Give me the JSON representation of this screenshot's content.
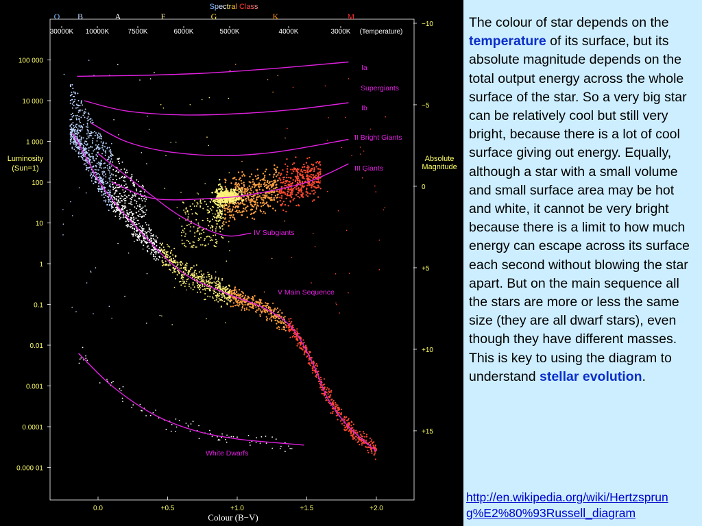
{
  "chart_data": {
    "type": "scatter",
    "title": "Spectral Class",
    "spectral_classes": [
      {
        "label": "O",
        "color": "#7fb8ff"
      },
      {
        "label": "B",
        "color": "#c8dcff"
      },
      {
        "label": "A",
        "color": "#ffffff"
      },
      {
        "label": "F",
        "color": "#fff6a0"
      },
      {
        "label": "G",
        "color": "#ffe040"
      },
      {
        "label": "K",
        "color": "#ff9020"
      },
      {
        "label": "M",
        "color": "#ff2a2a"
      }
    ],
    "temperature_ticks": [
      "30000K",
      "10000K",
      "7500K",
      "6000K",
      "5000K",
      "4000K",
      "3000K"
    ],
    "temperature_label": "(Temperature)",
    "xlabel": "Colour (B−V)",
    "x_ticks": [
      "0.0",
      "+0.5",
      "+1.0",
      "+1.5",
      "+2.0"
    ],
    "x_tick_values": [
      0.0,
      0.5,
      1.0,
      1.5,
      2.0
    ],
    "xlim": [
      -0.35,
      2.3
    ],
    "ylabel_left": [
      "Luminosity",
      "(Sun=1)"
    ],
    "y_ticks_left": [
      "100 000",
      "10 000",
      "1 000",
      "100",
      "10",
      "1",
      "0.1",
      "0.01",
      "0.001",
      "0.0001",
      "0.000 01"
    ],
    "y_ticks_left_values": [
      5,
      4,
      3,
      2,
      1,
      0,
      -1,
      -2,
      -3,
      -4,
      -5
    ],
    "ylim_log10_luminosity": [
      -5.8,
      6.0
    ],
    "ylabel_right": [
      "Absolute",
      "Magnitude"
    ],
    "y_ticks_right": [
      "−10",
      "−5",
      "0",
      "+5",
      "+10",
      "+15"
    ],
    "y_ticks_right_values": [
      -10,
      -5,
      0,
      5,
      10,
      15
    ],
    "grid": false,
    "curve_color": "#e020e0",
    "star_colors": {
      "blue": "#bcd4ff",
      "white": "#ffffff",
      "yellow": "#fff27a",
      "orange": "#ffa040",
      "red": "#ff4a30"
    },
    "series": [
      {
        "name": "Ia",
        "x": [
          -0.15,
          0.3,
          0.8,
          1.3,
          1.8
        ],
        "y": [
          4.6,
          4.62,
          4.68,
          4.8,
          4.95
        ]
      },
      {
        "name": "Ib",
        "x": [
          -0.1,
          0.2,
          0.6,
          1.0,
          1.4,
          1.8
        ],
        "y": [
          4.0,
          3.75,
          3.65,
          3.68,
          3.78,
          3.95
        ]
      },
      {
        "name": "II Bright Giants",
        "x": [
          -0.05,
          0.2,
          0.5,
          0.9,
          1.3,
          1.8
        ],
        "y": [
          3.45,
          3.0,
          2.75,
          2.65,
          2.75,
          3.05
        ]
      },
      {
        "name": "III    Giants",
        "x": [
          0.1,
          0.4,
          0.8,
          1.1,
          1.5,
          1.8
        ],
        "y": [
          2.0,
          1.6,
          1.6,
          1.7,
          2.0,
          2.45
        ]
      },
      {
        "name": "IV  Subgiants",
        "x": [
          0.0,
          0.3,
          0.6,
          0.9,
          1.1
        ],
        "y": [
          2.7,
          1.9,
          1.15,
          0.7,
          0.75
        ]
      },
      {
        "name": "V  Main Sequence",
        "x": [
          -0.18,
          -0.1,
          0.05,
          0.3,
          0.6,
          0.9,
          1.2,
          1.4,
          1.55,
          1.65,
          1.8,
          2.0
        ],
        "y": [
          3.2,
          2.7,
          1.8,
          0.8,
          -0.2,
          -0.7,
          -1.1,
          -1.6,
          -2.5,
          -3.3,
          -4.0,
          -4.6
        ]
      },
      {
        "name": "White Dwarfs",
        "x": [
          -0.14,
          0.1,
          0.4,
          0.7,
          1.0,
          1.3,
          1.48
        ],
        "y": [
          -2.2,
          -3.0,
          -3.7,
          -4.1,
          -4.3,
          -4.4,
          -4.45
        ]
      }
    ]
  },
  "text": {
    "p1": "The colour of star depends on the ",
    "h1": "temperature",
    "p2": " of its surface, but its absolute magnitude depends on the total output energy across the whole surface of the star. So a very big star can be relatively cool but still very bright, because there is a lot of cool surface giving out energy. Equally, although a star with a small volume and small surface area may be hot and white, it cannot be very bright because there is a limit to how much energy can escape across its surface each second without blowing the star apart. But on the main sequence all the stars are more or less the same size (they are all dwarf stars), even though they have different masses. This is key to using the diagram to understand ",
    "h2": "stellar evolution",
    "p3": "."
  },
  "link": "http://en.wikipedia.org/wiki/Hertzsprung%E2%80%93Russell_diagram"
}
